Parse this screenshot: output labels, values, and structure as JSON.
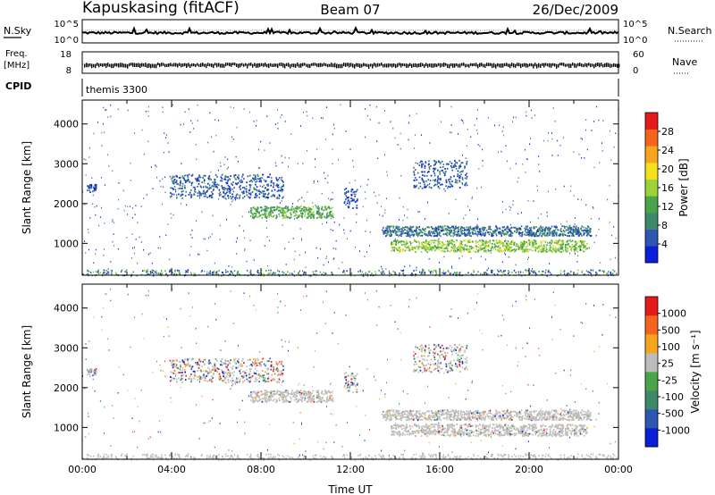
{
  "header": {
    "station": "Kapuskasing (fitACF)",
    "beam": "Beam 07",
    "date": "26/Dec/2009"
  },
  "control_panels": {
    "nsky_label": "N.Sky",
    "nsky_ticks": [
      "10^5",
      "10^0"
    ],
    "nsearch_label": "N.Search",
    "freq_label_1": "Freq.",
    "freq_label_2": "[MHz]",
    "freq_ticks": [
      "18",
      "8"
    ],
    "nave_ticks": [
      "60",
      "0"
    ],
    "nave_label": "Nave",
    "cpid_label": "CPID",
    "cpid_value": "themis 3300"
  },
  "colors": {
    "power_scale": [
      "#0b1fd8",
      "#2e58b0",
      "#3d8a6a",
      "#4aa54a",
      "#9ad43a",
      "#f4e01c",
      "#f6a51e",
      "#f3641d",
      "#e41a1c"
    ],
    "velocity_scale": [
      "#e41a1c",
      "#f3641d",
      "#f6a51e",
      "#bcbcbc",
      "#4aa54a",
      "#3d8a6a",
      "#2e58b0",
      "#0b1fd8"
    ],
    "ground_scatter": "#bdbcb8"
  },
  "chart_data": [
    {
      "type": "heatmap",
      "name_key": "power",
      "ylabel": "Slant Range [km]",
      "xlabel": "",
      "xlim": [
        0,
        24
      ],
      "ylim": [
        200,
        4600
      ],
      "y_ticks": [
        "1000",
        "2000",
        "3000",
        "4000"
      ],
      "colorbar_label": "Power [dB]",
      "colorbar_ticks": [
        "28",
        "24",
        "20",
        "16",
        "12",
        "8",
        "4"
      ],
      "colorbar_range": [
        0,
        32
      ],
      "echo_regions": [
        {
          "t": [
            3.9,
            9.0
          ],
          "r": [
            2150,
            2750
          ],
          "p": 6
        },
        {
          "t": [
            7.5,
            11.2
          ],
          "r": [
            1650,
            1950
          ],
          "p": 14
        },
        {
          "t": [
            11.7,
            12.3
          ],
          "r": [
            1900,
            2400
          ],
          "p": 5
        },
        {
          "t": [
            13.4,
            22.8
          ],
          "r": [
            1200,
            1450
          ],
          "p": 8
        },
        {
          "t": [
            13.8,
            22.6
          ],
          "r": [
            800,
            1100
          ],
          "p": 17
        },
        {
          "t": [
            14.8,
            17.2
          ],
          "r": [
            2400,
            3100
          ],
          "p": 6
        },
        {
          "t": [
            0.2,
            0.6
          ],
          "r": [
            2300,
            2500
          ],
          "p": 5
        }
      ]
    },
    {
      "type": "heatmap",
      "name_key": "velocity",
      "ylabel": "Slant Range [km]",
      "xlabel": "Time UT",
      "xlim": [
        0,
        24
      ],
      "ylim": [
        200,
        4600
      ],
      "x_ticks": [
        "00:00",
        "04:00",
        "08:00",
        "12:00",
        "16:00",
        "20:00",
        "00:00"
      ],
      "y_ticks": [
        "1000",
        "2000",
        "3000",
        "4000"
      ],
      "colorbar_label": "Velocity [m s⁻¹]",
      "colorbar_ticks": [
        "1000",
        "500",
        "100",
        "25",
        "-25",
        "-100",
        "-500",
        "-1000"
      ]
    }
  ]
}
